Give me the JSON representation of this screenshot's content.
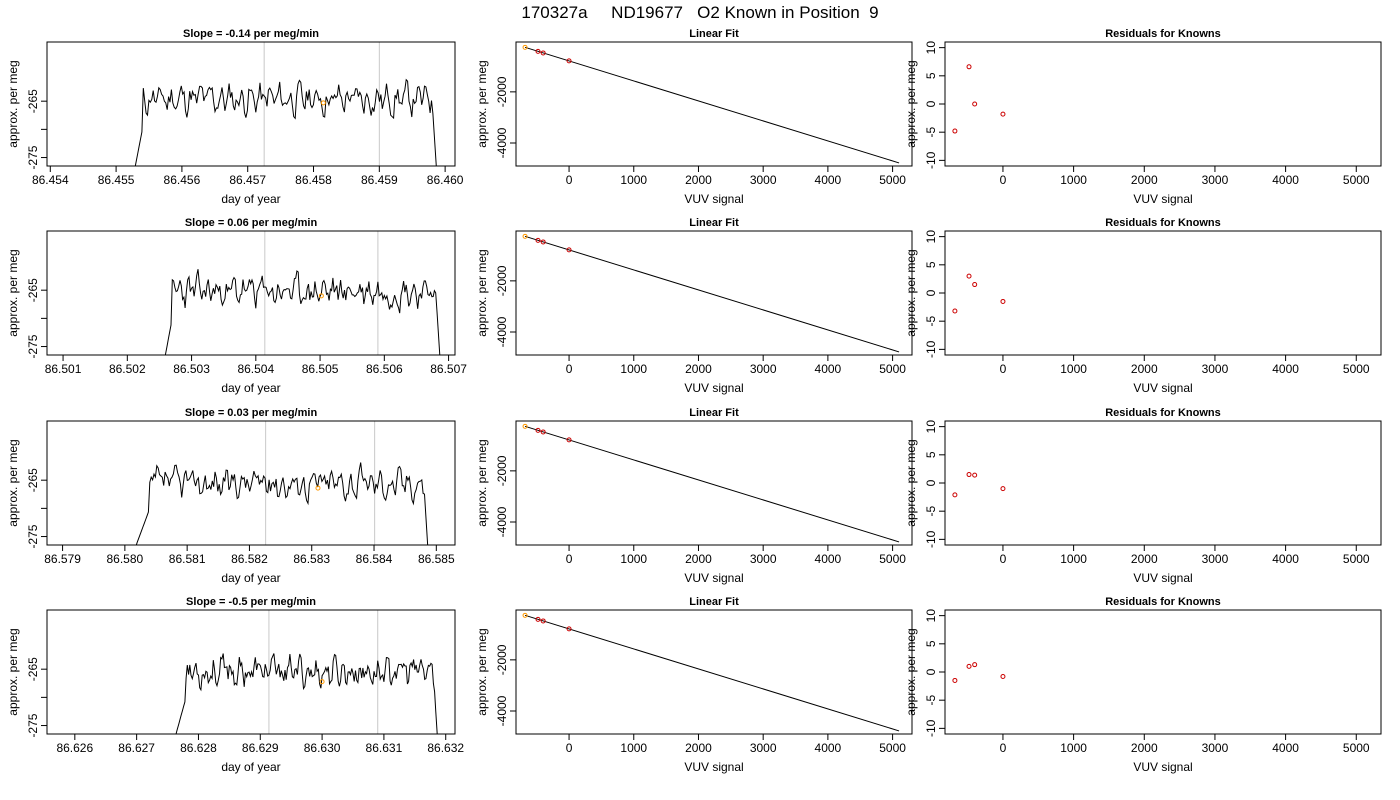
{
  "page_title": "170327a     ND19677   O2 Known in Position  9",
  "chart_data": [
    {
      "panel": "row1-timeseries",
      "type": "line",
      "title": "Slope =  -0.14  per meg/min",
      "xlabel": "day of year",
      "ylabel": "approx. per meg",
      "xlim": [
        86.45395,
        86.46015
      ],
      "ylim": [
        -276.5,
        -254.5
      ],
      "xticks": [
        "86.454",
        "86.455",
        "86.456",
        "86.457",
        "86.458",
        "86.459",
        "86.460"
      ],
      "yticks": [
        "-265",
        "-275"
      ],
      "vlines": [
        86.45725,
        86.459
      ],
      "x_range": [
        86.4552,
        86.4599
      ],
      "rise_x": 86.4554,
      "drop_x": 86.4598,
      "level": -264.6,
      "amplitude": 1.6,
      "seed": 11,
      "marker": {
        "x": 86.45815,
        "y": -265.3,
        "color": "#ff9900"
      }
    },
    {
      "panel": "row1-linear-fit",
      "type": "scatter",
      "title": "Linear Fit",
      "xlabel": "VUV signal",
      "ylabel": "approx. per meg",
      "xlim": [
        -820,
        5300
      ],
      "ylim": [
        -4900,
        -50
      ],
      "xticks": [
        0,
        1000,
        2000,
        3000,
        4000,
        5000
      ],
      "yticks": [
        -2000,
        -4000
      ],
      "line": {
        "x": [
          -680,
          5100
        ],
        "y": [
          -258,
          -4780
        ]
      },
      "points": [
        {
          "x": -680,
          "y": -258,
          "color": "#ff9900"
        },
        {
          "x": -480,
          "y": -415,
          "color": "#cc0000"
        },
        {
          "x": -400,
          "y": -478,
          "color": "#cc0000"
        },
        {
          "x": 0,
          "y": -790,
          "color": "#cc0000"
        }
      ]
    },
    {
      "panel": "row1-residuals",
      "type": "scatter",
      "title": "Residuals for Knowns",
      "xlabel": "VUV signal",
      "ylabel": "approx. per meg",
      "xlim": [
        -820,
        5350
      ],
      "ylim": [
        -11,
        11
      ],
      "xticks": [
        0,
        1000,
        2000,
        3000,
        4000,
        5000
      ],
      "yticks": [
        10,
        5,
        0,
        -5,
        -10
      ],
      "points": [
        {
          "x": -680,
          "y": -4.8,
          "color": "#cc0000"
        },
        {
          "x": -480,
          "y": 6.6,
          "color": "#cc0000"
        },
        {
          "x": -400,
          "y": 0.0,
          "color": "#cc0000"
        },
        {
          "x": 0,
          "y": -1.8,
          "color": "#cc0000"
        }
      ]
    },
    {
      "panel": "row2-timeseries",
      "type": "line",
      "title": "Slope =  0.06  per meg/min",
      "xlabel": "day of year",
      "ylabel": "approx. per meg",
      "xlim": [
        86.50075,
        86.5071
      ],
      "ylim": [
        -276.5,
        -254.5
      ],
      "xticks": [
        "86.501",
        "86.502",
        "86.503",
        "86.504",
        "86.505",
        "86.506",
        "86.507"
      ],
      "yticks": [
        "-265",
        "-275"
      ],
      "vlines": [
        86.50414,
        86.5059
      ],
      "x_range": [
        86.5025,
        86.5069
      ],
      "rise_x": 86.5027,
      "drop_x": 86.5068,
      "level": -265.2,
      "amplitude": 1.6,
      "seed": 23,
      "marker": {
        "x": 86.50502,
        "y": -266.0,
        "color": "#ff9900"
      }
    },
    {
      "panel": "row2-linear-fit",
      "type": "scatter",
      "title": "Linear Fit",
      "xlabel": "VUV signal",
      "ylabel": "approx. per meg",
      "xlim": [
        -820,
        5300
      ],
      "ylim": [
        -4900,
        -50
      ],
      "xticks": [
        0,
        1000,
        2000,
        3000,
        4000,
        5000
      ],
      "yticks": [
        -2000,
        -4000
      ],
      "line": {
        "x": [
          -680,
          5100
        ],
        "y": [
          -258,
          -4780
        ]
      },
      "points": [
        {
          "x": -680,
          "y": -258,
          "color": "#ff9900"
        },
        {
          "x": -480,
          "y": -415,
          "color": "#cc0000"
        },
        {
          "x": -400,
          "y": -478,
          "color": "#cc0000"
        },
        {
          "x": 0,
          "y": -790,
          "color": "#cc0000"
        }
      ]
    },
    {
      "panel": "row2-residuals",
      "type": "scatter",
      "title": "Residuals for Knowns",
      "xlabel": "VUV signal",
      "ylabel": "approx. per meg",
      "xlim": [
        -820,
        5350
      ],
      "ylim": [
        -11,
        11
      ],
      "xticks": [
        0,
        1000,
        2000,
        3000,
        4000,
        5000
      ],
      "yticks": [
        10,
        5,
        0,
        -5,
        -10
      ],
      "points": [
        {
          "x": -680,
          "y": -3.2,
          "color": "#cc0000"
        },
        {
          "x": -480,
          "y": 3.0,
          "color": "#cc0000"
        },
        {
          "x": -400,
          "y": 1.5,
          "color": "#cc0000"
        },
        {
          "x": 0,
          "y": -1.5,
          "color": "#cc0000"
        }
      ]
    },
    {
      "panel": "row3-timeseries",
      "type": "line",
      "title": "Slope =  0.03  per meg/min",
      "xlabel": "day of year",
      "ylabel": "approx. per meg",
      "xlim": [
        86.57875,
        86.5853
      ],
      "ylim": [
        -276.5,
        -254.5
      ],
      "xticks": [
        "86.579",
        "86.580",
        "86.581",
        "86.582",
        "86.583",
        "86.584",
        "86.585"
      ],
      "yticks": [
        "-265",
        "-275"
      ],
      "vlines": [
        86.58226,
        86.58401
      ],
      "x_range": [
        86.58,
        86.5849
      ],
      "rise_x": 86.5804,
      "drop_x": 86.5848,
      "level": -265.5,
      "amplitude": 1.6,
      "seed": 37,
      "marker": {
        "x": 86.5831,
        "y": -266.4,
        "color": "#ff9900"
      }
    },
    {
      "panel": "row3-linear-fit",
      "type": "scatter",
      "title": "Linear Fit",
      "xlabel": "VUV signal",
      "ylabel": "approx. per meg",
      "xlim": [
        -820,
        5300
      ],
      "ylim": [
        -4900,
        -50
      ],
      "xticks": [
        0,
        1000,
        2000,
        3000,
        4000,
        5000
      ],
      "yticks": [
        -2000,
        -4000
      ],
      "line": {
        "x": [
          -680,
          5100
        ],
        "y": [
          -258,
          -4780
        ]
      },
      "points": [
        {
          "x": -680,
          "y": -258,
          "color": "#ff9900"
        },
        {
          "x": -480,
          "y": -415,
          "color": "#cc0000"
        },
        {
          "x": -400,
          "y": -478,
          "color": "#cc0000"
        },
        {
          "x": 0,
          "y": -790,
          "color": "#cc0000"
        }
      ]
    },
    {
      "panel": "row3-residuals",
      "type": "scatter",
      "title": "Residuals for Knowns",
      "xlabel": "VUV signal",
      "ylabel": "approx. per meg",
      "xlim": [
        -820,
        5350
      ],
      "ylim": [
        -11,
        11
      ],
      "xticks": [
        0,
        1000,
        2000,
        3000,
        4000,
        5000
      ],
      "yticks": [
        10,
        5,
        0,
        -5,
        -10
      ],
      "points": [
        {
          "x": -680,
          "y": -2.1,
          "color": "#cc0000"
        },
        {
          "x": -480,
          "y": 1.5,
          "color": "#cc0000"
        },
        {
          "x": -400,
          "y": 1.4,
          "color": "#cc0000"
        },
        {
          "x": 0,
          "y": -1.0,
          "color": "#cc0000"
        }
      ]
    },
    {
      "panel": "row4-timeseries",
      "type": "line",
      "title": "Slope =  -0.5  per meg/min",
      "xlabel": "day of year",
      "ylabel": "approx. per meg",
      "xlim": [
        86.62555,
        86.63215
      ],
      "ylim": [
        -276.5,
        -254.5
      ],
      "xticks": [
        "86.626",
        "86.627",
        "86.628",
        "86.629",
        "86.630",
        "86.631",
        "86.632"
      ],
      "yticks": [
        "-265",
        "-275"
      ],
      "vlines": [
        86.62914,
        86.6309
      ],
      "x_range": [
        86.6275,
        86.6319
      ],
      "rise_x": 86.6278,
      "drop_x": 86.6318,
      "level": -265.4,
      "amplitude": 1.6,
      "seed": 53,
      "marker": {
        "x": 86.63,
        "y": -267.2,
        "color": "#ff9900"
      }
    },
    {
      "panel": "row4-linear-fit",
      "type": "scatter",
      "title": "Linear Fit",
      "xlabel": "VUV signal",
      "ylabel": "approx. per meg",
      "xlim": [
        -820,
        5300
      ],
      "ylim": [
        -4900,
        -50
      ],
      "xticks": [
        0,
        1000,
        2000,
        3000,
        4000,
        5000
      ],
      "yticks": [
        -2000,
        -4000
      ],
      "line": {
        "x": [
          -680,
          5100
        ],
        "y": [
          -258,
          -4780
        ]
      },
      "points": [
        {
          "x": -680,
          "y": -258,
          "color": "#ff9900"
        },
        {
          "x": -480,
          "y": -415,
          "color": "#cc0000"
        },
        {
          "x": -400,
          "y": -478,
          "color": "#cc0000"
        },
        {
          "x": 0,
          "y": -790,
          "color": "#cc0000"
        }
      ]
    },
    {
      "panel": "row4-residuals",
      "type": "scatter",
      "title": "Residuals for Knowns",
      "xlabel": "VUV signal",
      "ylabel": "approx. per meg",
      "xlim": [
        -820,
        5350
      ],
      "ylim": [
        -11,
        11
      ],
      "xticks": [
        0,
        1000,
        2000,
        3000,
        4000,
        5000
      ],
      "yticks": [
        10,
        5,
        0,
        -5,
        -10
      ],
      "points": [
        {
          "x": -680,
          "y": -1.5,
          "color": "#cc0000"
        },
        {
          "x": -480,
          "y": 1.0,
          "color": "#cc0000"
        },
        {
          "x": -400,
          "y": 1.3,
          "color": "#cc0000"
        },
        {
          "x": 0,
          "y": -0.8,
          "color": "#cc0000"
        }
      ]
    }
  ]
}
